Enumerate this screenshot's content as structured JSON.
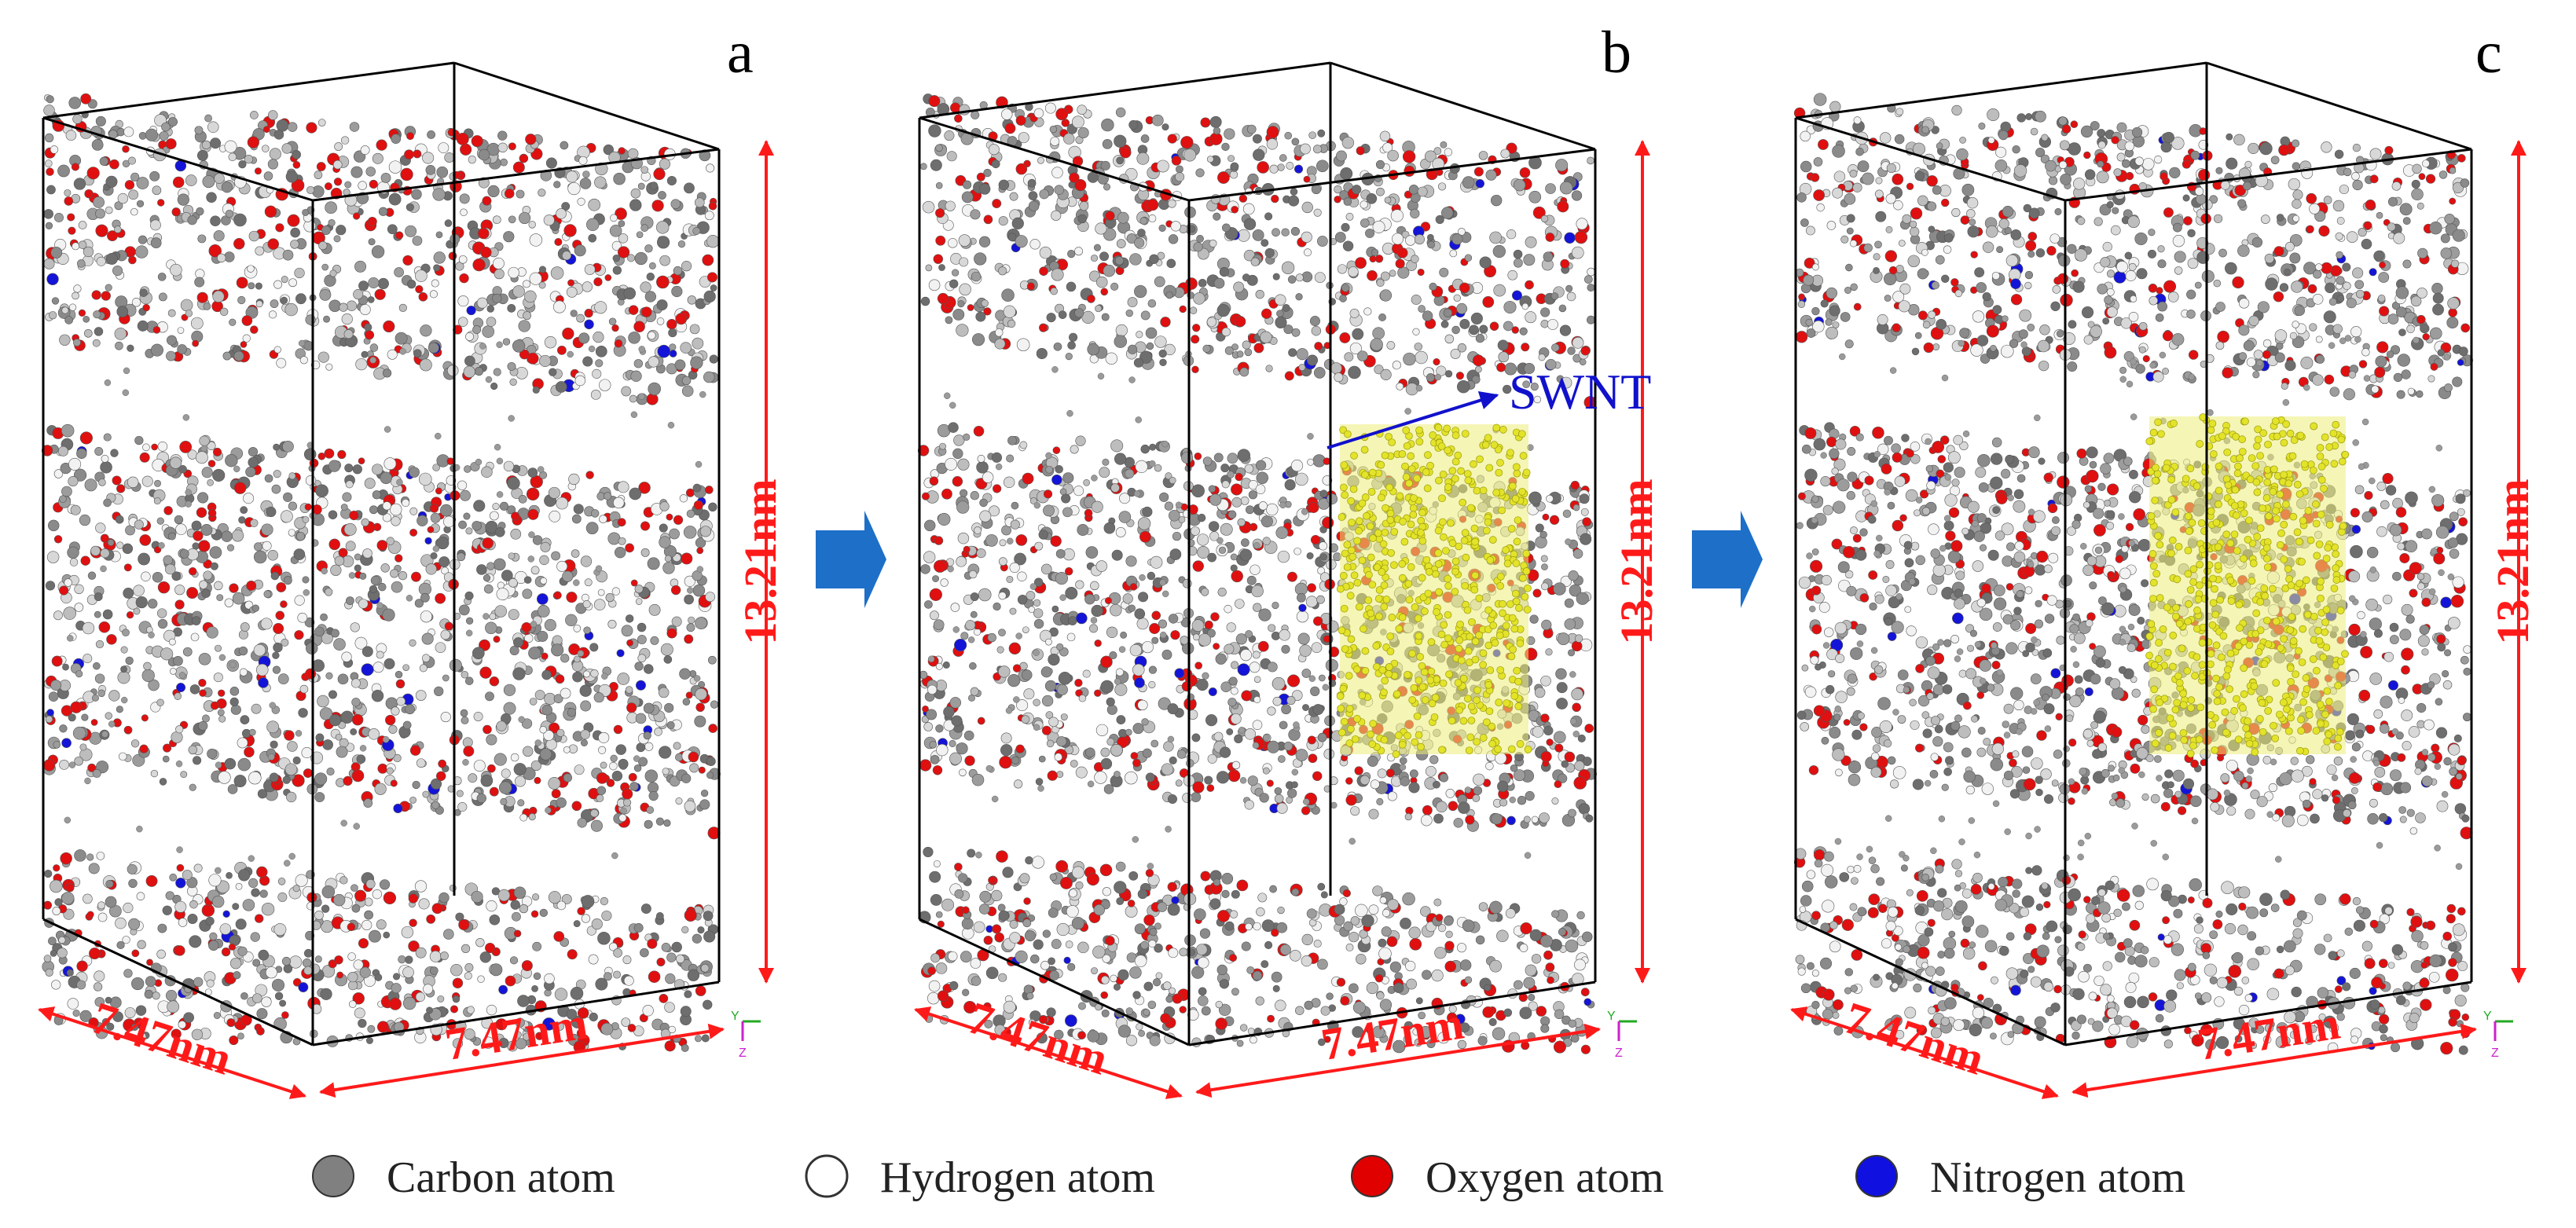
{
  "panels": [
    {
      "letter": "a",
      "height_label": "13.21nm",
      "width_left_label": "7.47nm",
      "width_right_label": "7.47nm",
      "has_swnt": false
    },
    {
      "letter": "b",
      "height_label": "13.21nm",
      "width_left_label": "7.47nm",
      "width_right_label": "7.47nm",
      "has_swnt": true,
      "swnt_label": "SWNT"
    },
    {
      "letter": "c",
      "height_label": "13.21nm",
      "width_left_label": "7.47nm",
      "width_right_label": "7.47nm",
      "has_swnt": true
    }
  ],
  "axis_labels": {
    "y": "Y",
    "z": "Z"
  },
  "legend": [
    {
      "label": "Carbon atom",
      "color": "#808080"
    },
    {
      "label": "Hydrogen atom",
      "color": "#ffffff"
    },
    {
      "label": "Oxygen atom",
      "color": "#e00000"
    },
    {
      "label": "Nitrogen atom",
      "color": "#1010e0"
    }
  ],
  "colors": {
    "dimension": "#ff1a1a",
    "arrow": "#1e6fc8",
    "swnt": "#e3e32a",
    "swnt_label": "#1111cc",
    "box_edge": "#000000"
  }
}
